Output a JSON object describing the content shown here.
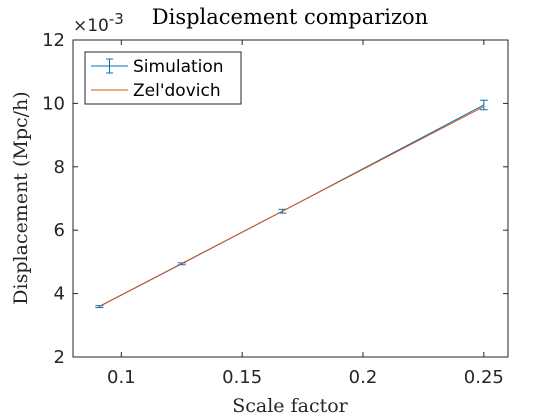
{
  "chart_data": {
    "type": "line",
    "title": "Displacement comparizon",
    "xlabel": "Scale factor",
    "ylabel": "Displacement (Mpc/h)",
    "y_multiplier_label": "×10",
    "y_multiplier_exponent": "-3",
    "xlim": [
      0.08,
      0.26
    ],
    "ylim": [
      2,
      12
    ],
    "x_ticks": [
      0.1,
      0.15,
      0.2,
      0.25
    ],
    "x_tick_labels": [
      "0.1",
      "0.15",
      "0.2",
      "0.25"
    ],
    "y_ticks": [
      2,
      4,
      6,
      8,
      10,
      12
    ],
    "y_tick_labels": [
      "2",
      "4",
      "6",
      "8",
      "10",
      "12"
    ],
    "grid": false,
    "legend_position": "top-left",
    "series": [
      {
        "name": "Simulation",
        "color": "#0072BD",
        "style": "errorbar",
        "x": [
          0.0909,
          0.125,
          0.1667,
          0.25
        ],
        "y": [
          3.59,
          4.94,
          6.6,
          9.95
        ],
        "err": [
          0.03,
          0.03,
          0.06,
          0.15
        ]
      },
      {
        "name": "Zel'dovich",
        "color": "#D95319",
        "style": "line",
        "x": [
          0.0909,
          0.25
        ],
        "y": [
          3.6,
          9.9
        ]
      }
    ]
  }
}
